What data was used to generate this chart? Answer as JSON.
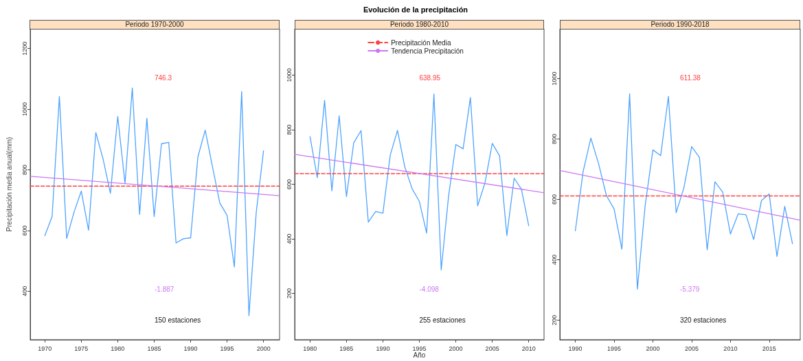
{
  "chart_data": [
    {
      "type": "line",
      "subtitle": "Periodo 1970-2000",
      "ylabel": "Precipitación media anual(mm)",
      "xlim": [
        1968,
        2002.2
      ],
      "xticks": [
        1970,
        1975,
        1980,
        1985,
        1990,
        1995,
        2000
      ],
      "ylim": [
        240,
        1265
      ],
      "yticks": [
        400,
        600,
        800,
        1000,
        1200
      ],
      "grid": false,
      "legend": false,
      "marker": "none",
      "series": [
        {
          "color": "#4da3ff",
          "x": [
            1970,
            1971,
            1972,
            1973,
            1974,
            1975,
            1976,
            1977,
            1978,
            1979,
            1980,
            1981,
            1982,
            1983,
            1984,
            1985,
            1986,
            1987,
            1988,
            1989,
            1990,
            1991,
            1992,
            1993,
            1994,
            1995,
            1996,
            1997,
            1998,
            1999,
            2000
          ],
          "values": [
            583,
            646,
            1042,
            574,
            660,
            730,
            601,
            923,
            835,
            723,
            976,
            755,
            1070,
            653,
            970,
            646,
            886,
            891,
            559,
            573,
            576,
            843,
            931,
            810,
            691,
            650,
            480,
            1058,
            319,
            660,
            863
          ]
        },
        {
          "color": "#ff4040",
          "line_style": "dashed",
          "x": [
            1968,
            2002.2
          ],
          "values": [
            746.3,
            746.3
          ]
        },
        {
          "color": "#cc77f2",
          "x": [
            1968,
            2002.2
          ],
          "values": [
            779,
            715
          ]
        }
      ],
      "annotations": [
        "746.3",
        "-1.887",
        "150 estaciones"
      ]
    },
    {
      "type": "line",
      "title": "Evolución de la precipitación",
      "subtitle": "Periodo 1980-2010",
      "xlabel": "Año",
      "xlim": [
        1977.9,
        2012.1
      ],
      "xticks": [
        1980,
        1985,
        1990,
        1995,
        2000,
        2005,
        2010
      ],
      "ylim": [
        30,
        1170
      ],
      "yticks": [
        200,
        400,
        600,
        800,
        1000
      ],
      "grid": false,
      "legend": "top",
      "marker": "none",
      "series": [
        {
          "color": "#4da3ff",
          "x": [
            1980,
            1981,
            1982,
            1983,
            1984,
            1985,
            1986,
            1987,
            1988,
            1989,
            1990,
            1991,
            1992,
            1993,
            1994,
            1995,
            1996,
            1997,
            1998,
            1999,
            2000,
            2001,
            2002,
            2003,
            2004,
            2005,
            2006,
            2007,
            2008,
            2009,
            2010
          ],
          "values": [
            775,
            624,
            908,
            576,
            851,
            555,
            752,
            797,
            461,
            500,
            494,
            706,
            798,
            664,
            584,
            537,
            421,
            931,
            286,
            555,
            746,
            730,
            918,
            521,
            605,
            750,
            704,
            412,
            622,
            582,
            448
          ]
        },
        {
          "name": "Precipitación Media",
          "color": "#ff4040",
          "line_style": "dashed",
          "x": [
            1977.9,
            2012.1
          ],
          "values": [
            638.95,
            638.95
          ]
        },
        {
          "name": "Tendencia Precipitación",
          "color": "#cc77f2",
          "x": [
            1977.9,
            2012.1
          ],
          "values": [
            710,
            569
          ]
        }
      ],
      "annotations": [
        "638.95",
        "-4.098",
        "255 estaciones"
      ]
    },
    {
      "type": "line",
      "subtitle": "Periodo 1990-2018",
      "xlim": [
        1988,
        2019
      ],
      "xticks": [
        1990,
        1995,
        2000,
        2005,
        2010,
        2015
      ],
      "ylim": [
        135,
        1165
      ],
      "yticks": [
        200,
        400,
        600,
        800,
        1000
      ],
      "grid": false,
      "legend": false,
      "marker": "none",
      "series": [
        {
          "color": "#4da3ff",
          "x": [
            1990,
            1991,
            1992,
            1993,
            1994,
            1995,
            1996,
            1997,
            1998,
            1999,
            2000,
            2001,
            2002,
            2003,
            2004,
            2005,
            2006,
            2007,
            2008,
            2009,
            2010,
            2011,
            2012,
            2013,
            2014,
            2015,
            2016,
            2017,
            2018
          ],
          "values": [
            496,
            692,
            803,
            718,
            613,
            568,
            435,
            950,
            303,
            579,
            764,
            745,
            941,
            556,
            639,
            775,
            739,
            433,
            658,
            624,
            485,
            552,
            549,
            467,
            596,
            618,
            411,
            577,
            453
          ]
        },
        {
          "color": "#ff4040",
          "line_style": "dashed",
          "x": [
            1988,
            2019
          ],
          "values": [
            611.38,
            611.38
          ]
        },
        {
          "color": "#cc77f2",
          "x": [
            1988,
            2019
          ],
          "values": [
            696,
            531
          ]
        }
      ],
      "annotations": [
        "611.38",
        "-5.379",
        "320 estaciones"
      ]
    }
  ]
}
